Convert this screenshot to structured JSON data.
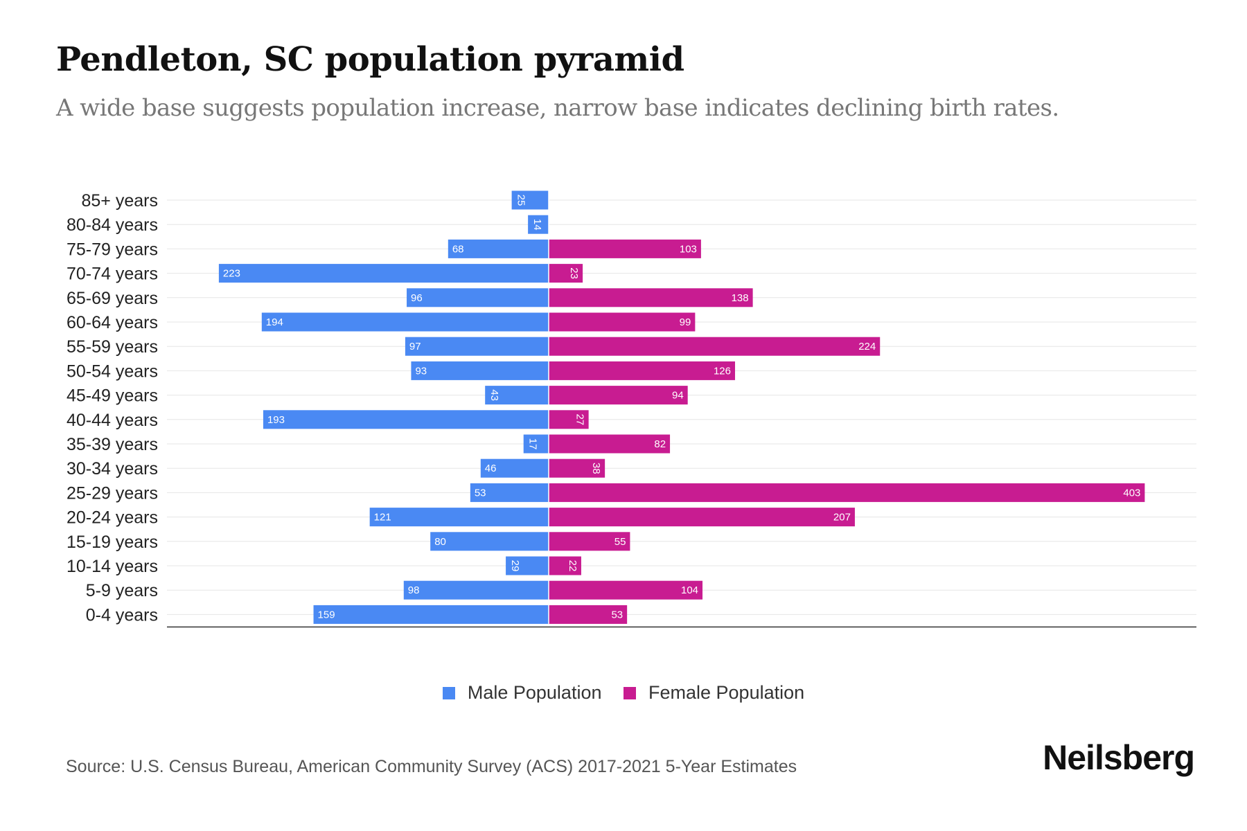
{
  "header": {
    "title": "Pendleton, SC population pyramid",
    "subtitle": "A wide base suggests population increase, narrow base indicates declining birth rates."
  },
  "chart_data": {
    "type": "bar",
    "orientation": "horizontal",
    "categories": [
      "85+ years",
      "80-84 years",
      "75-79 years",
      "70-74 years",
      "65-69 years",
      "60-64 years",
      "55-59 years",
      "50-54 years",
      "45-49 years",
      "40-44 years",
      "35-39 years",
      "30-34 years",
      "25-29 years",
      "20-24 years",
      "15-19 years",
      "10-14 years",
      "5-9 years",
      "0-4 years"
    ],
    "series": [
      {
        "name": "Male Population",
        "color": "#4a89f3",
        "values": [
          25,
          14,
          68,
          223,
          96,
          194,
          97,
          93,
          43,
          193,
          17,
          46,
          53,
          121,
          80,
          29,
          98,
          159
        ]
      },
      {
        "name": "Female Population",
        "color": "#c81c91",
        "values": [
          0,
          0,
          103,
          23,
          138,
          99,
          224,
          126,
          94,
          27,
          82,
          38,
          403,
          207,
          55,
          22,
          104,
          53
        ]
      }
    ],
    "grid": true,
    "legend_position": "bottom"
  },
  "legend": {
    "male": "Male Population",
    "female": "Female Population",
    "male_color": "#4a89f3",
    "female_color": "#c81c91"
  },
  "footer": {
    "source": "Source: U.S. Census Bureau, American Community Survey (ACS) 2017-2021 5-Year Estimates",
    "brand": "Neilsberg"
  }
}
